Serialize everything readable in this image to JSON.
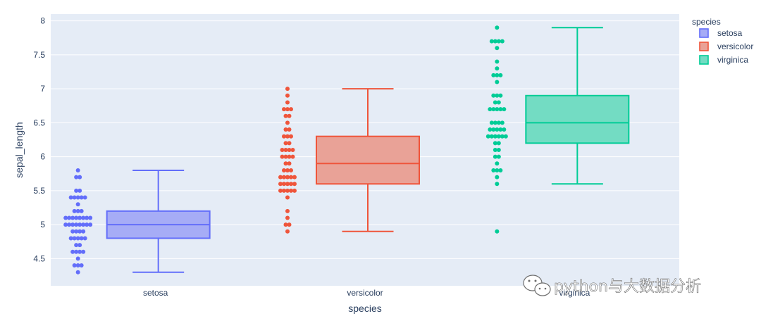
{
  "chart_data": {
    "type": "box",
    "xlabel": "species",
    "ylabel": "sepal_length",
    "categories": [
      "setosa",
      "versicolor",
      "virginica"
    ],
    "ylim": [
      4.1,
      8.1
    ],
    "yticks": [
      4.5,
      5,
      5.5,
      6,
      6.5,
      7,
      7.5,
      8
    ],
    "ytick_labels": [
      "4.5",
      "5",
      "5.5",
      "6",
      "6.5",
      "7",
      "7.5",
      "8"
    ],
    "grid": true,
    "legend": {
      "title": "species",
      "position": "top-right"
    },
    "series": [
      {
        "name": "setosa",
        "color": "#636efa",
        "fill": "#a6acf6",
        "box": {
          "min": 4.3,
          "q1": 4.8,
          "median": 5.0,
          "q3": 5.2,
          "max": 5.8
        },
        "points": [
          5.1,
          4.9,
          4.7,
          4.6,
          5.0,
          5.4,
          4.6,
          5.0,
          4.4,
          4.9,
          5.4,
          4.8,
          4.8,
          4.3,
          5.8,
          5.7,
          5.4,
          5.1,
          5.7,
          5.1,
          5.4,
          5.1,
          4.6,
          5.1,
          4.8,
          5.0,
          5.0,
          5.2,
          5.2,
          4.7,
          4.8,
          5.4,
          5.2,
          5.5,
          4.9,
          5.0,
          5.5,
          4.9,
          4.4,
          5.1,
          5.0,
          4.5,
          4.4,
          5.0,
          5.1,
          4.8,
          5.1,
          4.6,
          5.3,
          5.0
        ]
      },
      {
        "name": "versicolor",
        "color": "#ef553b",
        "fill": "#e9a297",
        "box": {
          "min": 4.9,
          "q1": 5.6,
          "median": 5.9,
          "q3": 6.3,
          "max": 7.0
        },
        "points": [
          7.0,
          6.4,
          6.9,
          5.5,
          6.5,
          5.7,
          6.3,
          4.9,
          6.6,
          5.2,
          5.0,
          5.9,
          6.0,
          6.1,
          5.6,
          6.7,
          5.6,
          5.8,
          6.2,
          5.6,
          5.9,
          6.1,
          6.3,
          6.1,
          6.4,
          6.6,
          6.8,
          6.7,
          6.0,
          5.7,
          5.5,
          5.5,
          5.8,
          6.0,
          5.4,
          6.0,
          6.7,
          6.3,
          5.6,
          5.5,
          5.5,
          6.1,
          5.8,
          5.0,
          5.6,
          5.7,
          5.7,
          6.2,
          5.1,
          5.7
        ]
      },
      {
        "name": "virginica",
        "color": "#00cc96",
        "fill": "#73dcc3",
        "box": {
          "min": 5.6,
          "q1": 6.2,
          "median": 6.5,
          "q3": 6.9,
          "max": 7.9
        },
        "outliers": [
          4.9
        ],
        "points": [
          6.3,
          5.8,
          7.1,
          6.3,
          6.5,
          7.6,
          4.9,
          7.3,
          6.7,
          7.2,
          6.5,
          6.4,
          6.8,
          5.7,
          5.8,
          6.4,
          6.5,
          7.7,
          7.7,
          6.0,
          6.9,
          5.6,
          7.7,
          6.3,
          6.7,
          7.2,
          6.2,
          6.1,
          6.4,
          7.2,
          7.4,
          7.9,
          6.4,
          6.3,
          6.1,
          7.7,
          6.3,
          6.4,
          6.0,
          6.9,
          6.7,
          6.9,
          5.8,
          6.8,
          6.7,
          6.7,
          6.3,
          6.5,
          6.2,
          5.9
        ]
      }
    ]
  },
  "watermark": {
    "text": "python与大数据分析",
    "icon": "wechat-icon"
  }
}
